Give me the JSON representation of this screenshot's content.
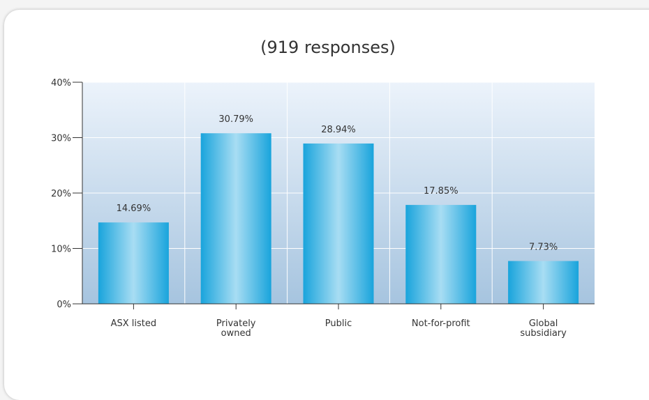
{
  "chart_data": {
    "type": "bar",
    "title": "(919 responses)",
    "categories": [
      [
        "ASX listed"
      ],
      [
        "Privately",
        "owned"
      ],
      [
        "Public"
      ],
      [
        "Not-for-profit"
      ],
      [
        "Global",
        "subsidiary"
      ]
    ],
    "values": [
      14.69,
      30.79,
      28.94,
      17.85,
      7.73
    ],
    "value_labels": [
      "14.69%",
      "30.79%",
      "28.94%",
      "17.85%",
      "7.73%"
    ],
    "yticks": [
      0,
      10,
      20,
      30,
      40
    ],
    "ytick_labels": [
      "0%",
      "10%",
      "20%",
      "30%",
      "40%"
    ],
    "ylim": [
      0,
      40
    ],
    "grid": true,
    "xlabel": "",
    "ylabel": ""
  },
  "colors": {
    "bar_edge": "#19a4dc",
    "bar_center": "#a8ddf3",
    "plot_bg_top": "#ecf3fb",
    "plot_bg_bottom": "#a6c4df",
    "grid": "#ffffff",
    "axis": "#333333"
  }
}
